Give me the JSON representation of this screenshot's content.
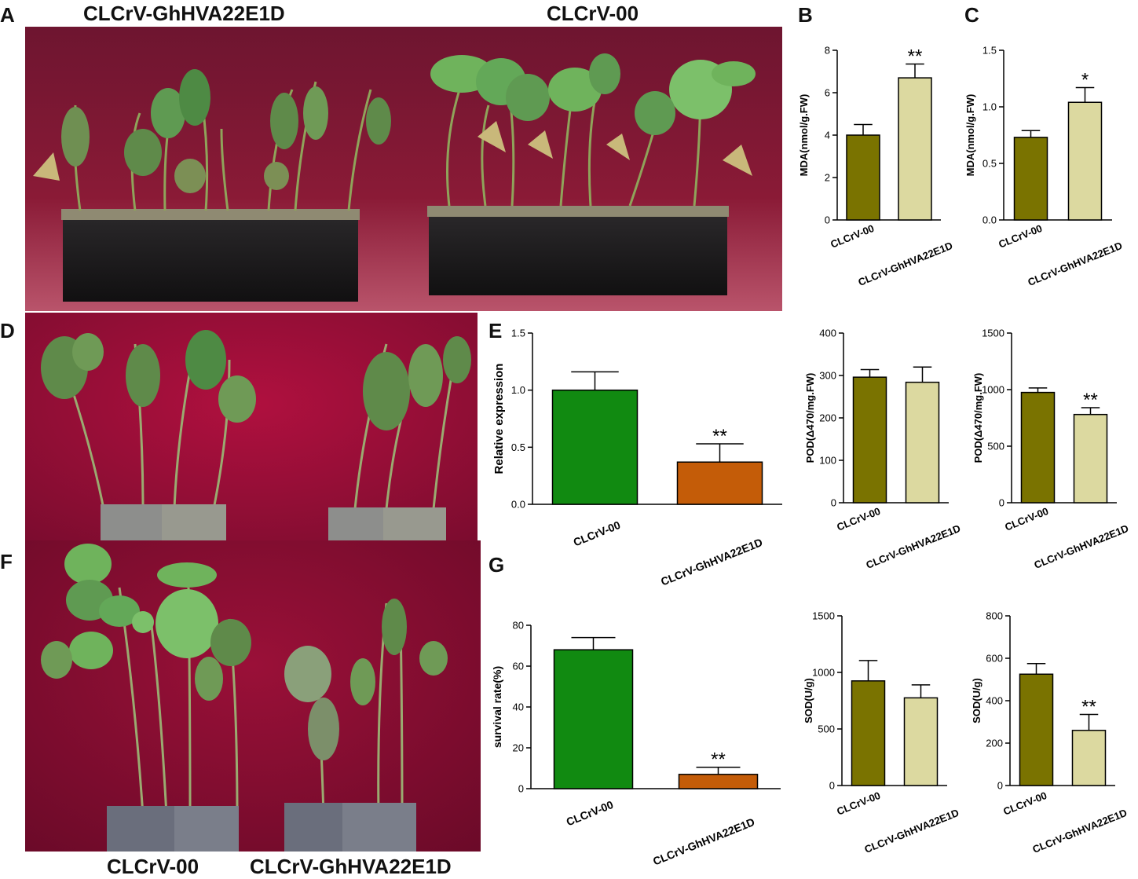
{
  "panels": {
    "A": "A",
    "B": "B",
    "C": "C",
    "D": "D",
    "E": "E",
    "F": "F",
    "G": "G"
  },
  "photo_labels": {
    "a_left": "CLCrV-GhHVA22E1D",
    "a_right": "CLCrV-00",
    "f_left": "CLCrV-00",
    "f_right": "CLCrV-GhHVA22E1D"
  },
  "colors": {
    "backdrop_a": "#7a1630",
    "backdrop_d": "#a0103e",
    "pot": "#1c1a1c",
    "soil": "#8f8a72",
    "leaf": "#5f9a52",
    "leaf_wilted": "#7c8f55",
    "leaf_dead": "#c9b87a",
    "stem": "#8fa35a",
    "bar_green": "#118a11",
    "bar_orange": "#c45c08",
    "bar_olive": "#7a7300",
    "bar_cream": "#dcd9a0"
  },
  "chart_data": [
    {
      "id": "B",
      "type": "bar",
      "title": "",
      "categories": [
        "CLCrV-00",
        "CLCrV-GhHVA22E1D"
      ],
      "values": [
        4.0,
        6.7
      ],
      "errors": [
        0.5,
        0.65
      ],
      "ylabel": "MDA(nmol/g.FW)",
      "ylim": [
        0,
        8
      ],
      "yticks": [
        "0",
        "2",
        "4",
        "6",
        "8"
      ],
      "ytick_values": [
        0,
        2,
        4,
        6,
        8
      ],
      "significance": [
        "",
        "**"
      ],
      "colors": [
        "#7a7300",
        "#dcd9a0"
      ]
    },
    {
      "id": "C",
      "type": "bar",
      "title": "",
      "categories": [
        "CLCrV-00",
        "CLCrV-GhHVA22E1D"
      ],
      "values": [
        0.73,
        1.04
      ],
      "errors": [
        0.06,
        0.13
      ],
      "ylabel": "MDA(nmol/g.FW)",
      "ylim": [
        0,
        1.5
      ],
      "yticks": [
        "0.0",
        "0.5",
        "1.0",
        "1.5"
      ],
      "ytick_values": [
        0,
        0.5,
        1.0,
        1.5
      ],
      "significance": [
        "",
        "*"
      ],
      "colors": [
        "#7a7300",
        "#dcd9a0"
      ]
    },
    {
      "id": "E",
      "type": "bar",
      "title": "",
      "categories": [
        "CLCrV-00",
        "CLCrV-GhHVA22E1D"
      ],
      "values": [
        1.0,
        0.37
      ],
      "errors": [
        0.16,
        0.16
      ],
      "ylabel": "Relative expression",
      "ylim": [
        0,
        1.5
      ],
      "yticks": [
        "0.0",
        "0.5",
        "1.0",
        "1.5"
      ],
      "ytick_values": [
        0,
        0.5,
        1.0,
        1.5
      ],
      "significance": [
        "",
        "**"
      ],
      "colors": [
        "#118a11",
        "#c45c08"
      ]
    },
    {
      "id": "POD1",
      "type": "bar",
      "title": "",
      "categories": [
        "CLCrV-00",
        "CLCrV-GhHVA22E1D"
      ],
      "values": [
        296,
        284
      ],
      "errors": [
        18,
        36
      ],
      "ylabel": "POD(Δ470/mg.FW)",
      "ylim": [
        0,
        400
      ],
      "yticks": [
        "0",
        "100",
        "200",
        "300",
        "400"
      ],
      "ytick_values": [
        0,
        100,
        200,
        300,
        400
      ],
      "significance": [
        "",
        ""
      ],
      "colors": [
        "#7a7300",
        "#dcd9a0"
      ]
    },
    {
      "id": "POD2",
      "type": "bar",
      "title": "",
      "categories": [
        "CLCrV-00",
        "CLCrV-GhHVA22E1D"
      ],
      "values": [
        975,
        780
      ],
      "errors": [
        40,
        60
      ],
      "ylabel": "POD(Δ470/mg.FW)",
      "ylim": [
        0,
        1500
      ],
      "yticks": [
        "0",
        "500",
        "1000",
        "1500"
      ],
      "ytick_values": [
        0,
        500,
        1000,
        1500
      ],
      "significance": [
        "",
        "**"
      ],
      "colors": [
        "#7a7300",
        "#dcd9a0"
      ]
    },
    {
      "id": "G",
      "type": "bar",
      "title": "",
      "categories": [
        "CLCrV-00",
        "CLCrV-GhHVA22E1D"
      ],
      "values": [
        68,
        7
      ],
      "errors": [
        6,
        3.5
      ],
      "ylabel": "survival rate(%)",
      "ylim": [
        0,
        80
      ],
      "yticks": [
        "0",
        "20",
        "40",
        "60",
        "80"
      ],
      "ytick_values": [
        0,
        20,
        40,
        60,
        80
      ],
      "significance": [
        "",
        "**"
      ],
      "colors": [
        "#118a11",
        "#c45c08"
      ]
    },
    {
      "id": "SOD1",
      "type": "bar",
      "title": "",
      "categories": [
        "CLCrV-00",
        "CLCrV-GhHVA22E1D"
      ],
      "values": [
        925,
        775
      ],
      "errors": [
        180,
        115
      ],
      "ylabel": "SOD(U/g)",
      "ylim": [
        0,
        1500
      ],
      "yticks": [
        "0",
        "500",
        "1000",
        "1500"
      ],
      "ytick_values": [
        0,
        500,
        1000,
        1500
      ],
      "significance": [
        "",
        ""
      ],
      "colors": [
        "#7a7300",
        "#dcd9a0"
      ]
    },
    {
      "id": "SOD2",
      "type": "bar",
      "title": "",
      "categories": [
        "CLCrV-00",
        "CLCrV-GhHVA22E1D"
      ],
      "values": [
        525,
        260
      ],
      "errors": [
        50,
        75
      ],
      "ylabel": "SOD(U/g)",
      "ylim": [
        0,
        800
      ],
      "yticks": [
        "0",
        "200",
        "400",
        "600",
        "800"
      ],
      "ytick_values": [
        0,
        200,
        400,
        600,
        800
      ],
      "significance": [
        "",
        "**"
      ],
      "colors": [
        "#7a7300",
        "#dcd9a0"
      ]
    }
  ]
}
